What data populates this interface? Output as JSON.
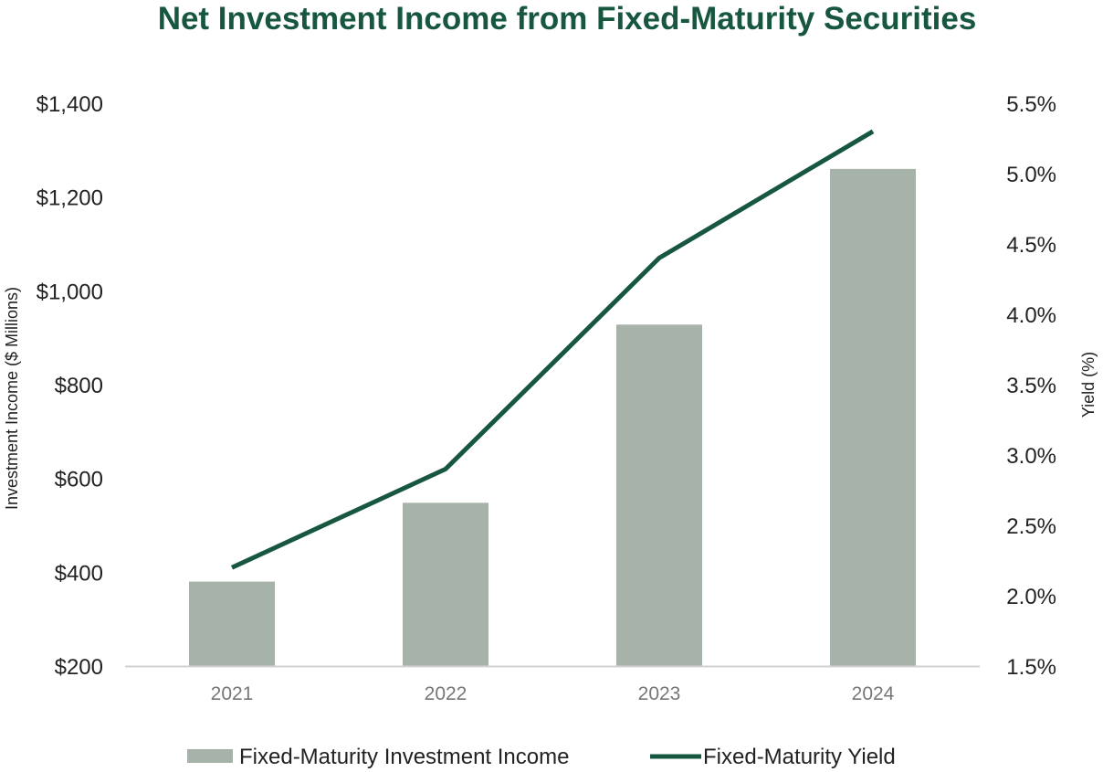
{
  "colors": {
    "bar": "#a7b3a8",
    "line": "#17573f",
    "title": "#17573f",
    "axis": "#d0d0d0"
  },
  "chart_data": {
    "type": "bar",
    "title": "Net Investment Income from Fixed-Maturity Securities",
    "categories": [
      "2021",
      "2022",
      "2023",
      "2024"
    ],
    "ylabel": "Investment Income ($ Millions)",
    "ylim": [
      200,
      1400
    ],
    "y_ticks": [
      "$200",
      "$400",
      "$600",
      "$800",
      "$1,000",
      "$1,200",
      "$1,400"
    ],
    "y2label": "Yield (%)",
    "y2lim": [
      1.5,
      5.5
    ],
    "y2_ticks": [
      "1.5%",
      "2.0%",
      "2.5%",
      "3.0%",
      "3.5%",
      "4.0%",
      "4.5%",
      "5.0%",
      "5.5%"
    ],
    "series": [
      {
        "name": "Fixed-Maturity Investment Income",
        "type": "bar",
        "axis": "left",
        "values": [
          380,
          548,
          928,
          1260
        ]
      },
      {
        "name": "Fixed-Maturity Yield",
        "type": "line",
        "axis": "right",
        "values": [
          2.2,
          2.9,
          4.4,
          5.3
        ]
      }
    ],
    "grid": false,
    "legend": "bottom-center"
  }
}
